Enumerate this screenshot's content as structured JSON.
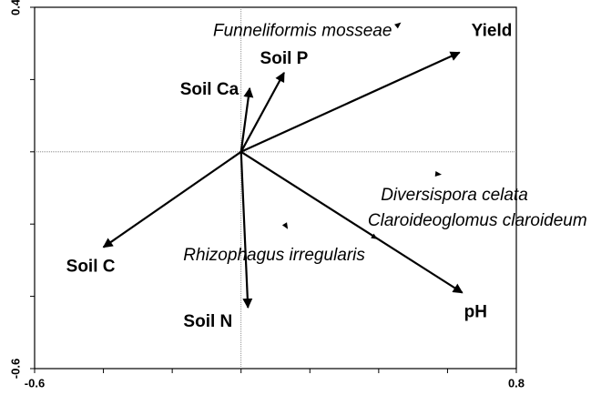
{
  "chart_data": {
    "type": "biplot",
    "xlim": [
      -0.6,
      0.8
    ],
    "ylim": [
      -0.6,
      0.4
    ],
    "xticks": [
      -0.6,
      0.8
    ],
    "yticks": [
      0.4,
      -0.6
    ],
    "xminorticks": [
      -0.4,
      -0.2,
      0,
      0.2,
      0.4,
      0.6
    ],
    "yminorticks": [
      0.2,
      0,
      -0.2,
      -0.4
    ],
    "color": "#000000",
    "vectors": [
      {
        "name": "Yield",
        "x": 0.635,
        "y": 0.275
      },
      {
        "name": "Soil P",
        "x": 0.125,
        "y": 0.219
      },
      {
        "name": "Soil Ca",
        "x": 0.025,
        "y": 0.176
      },
      {
        "name": "Soil C",
        "x": -0.4,
        "y": -0.264
      },
      {
        "name": "Soil N",
        "x": 0.02,
        "y": -0.431
      },
      {
        "name": "pH",
        "x": 0.643,
        "y": -0.39
      }
    ],
    "points": [
      {
        "name": "Funneliformis mosseae",
        "x": 0.465,
        "y": 0.358
      },
      {
        "name": "Diversispora celata",
        "x": 0.583,
        "y": -0.063
      },
      {
        "name": "Claroideoglomus claroideum",
        "x": 0.397,
        "y": -0.242
      },
      {
        "name": "Rhizophagus irregularis",
        "x": 0.136,
        "y": -0.214
      }
    ]
  }
}
